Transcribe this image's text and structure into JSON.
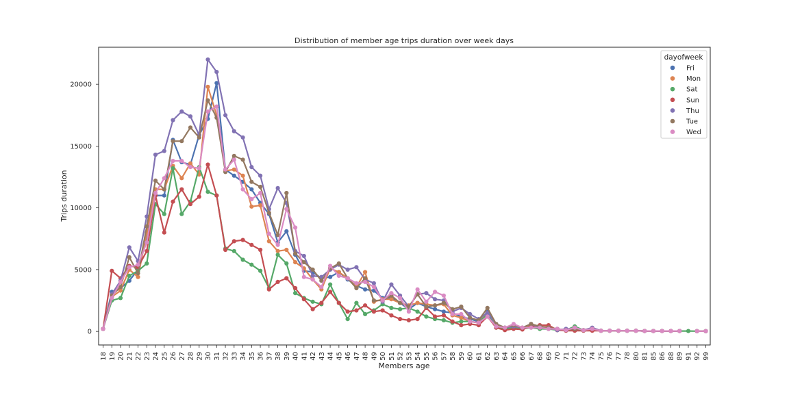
{
  "chart_data": {
    "type": "line",
    "title": "Distribution of member age trips duration over week days",
    "xlabel": "Members age",
    "ylabel": "Trips duration",
    "ylim": [
      -1100,
      23000
    ],
    "yticks": [
      0,
      5000,
      10000,
      15000,
      20000
    ],
    "grid": false,
    "legend": {
      "title": "dayofweek",
      "placement": "top-right"
    },
    "categories": [
      "18",
      "19",
      "20",
      "21",
      "22",
      "23",
      "24",
      "25",
      "26",
      "27",
      "28",
      "29",
      "30",
      "31",
      "32",
      "33",
      "34",
      "35",
      "36",
      "37",
      "38",
      "39",
      "40",
      "41",
      "42",
      "43",
      "44",
      "45",
      "46",
      "47",
      "48",
      "49",
      "50",
      "51",
      "52",
      "53",
      "54",
      "55",
      "56",
      "57",
      "58",
      "59",
      "60",
      "61",
      "62",
      "63",
      "64",
      "65",
      "66",
      "67",
      "68",
      "69",
      "70",
      "71",
      "72",
      "73",
      "74",
      "75",
      "76",
      "77",
      "78",
      "80",
      "81",
      "85",
      "86",
      "88",
      "89",
      "91",
      "92",
      "99"
    ],
    "series": [
      {
        "name": "Fri",
        "color": "#4c72b0",
        "values": [
          200,
          3200,
          3500,
          4100,
          5000,
          7700,
          11000,
          11000,
          15500,
          13700,
          13500,
          15900,
          17200,
          20100,
          13100,
          12600,
          12100,
          11500,
          10400,
          9500,
          7200,
          8100,
          6200,
          4900,
          4800,
          4300,
          4400,
          4800,
          4200,
          3700,
          3400,
          3300,
          2700,
          2700,
          2300,
          1800,
          2300,
          2000,
          1800,
          1600,
          1500,
          1200,
          1000,
          800,
          1600,
          500,
          300,
          300,
          250,
          400,
          300,
          200,
          200,
          100,
          200,
          100,
          200,
          50,
          50,
          50,
          50,
          50,
          30,
          30,
          30,
          30,
          30,
          null,
          20,
          20
        ]
      },
      {
        "name": "Mon",
        "color": "#dd8452",
        "values": [
          200,
          2800,
          3300,
          5000,
          4400,
          8000,
          11500,
          11500,
          13400,
          12400,
          13600,
          12700,
          19800,
          17500,
          13000,
          13100,
          12600,
          10100,
          10200,
          7300,
          6500,
          6600,
          5600,
          5100,
          4200,
          3400,
          5100,
          4800,
          4300,
          3600,
          4800,
          2400,
          2600,
          2600,
          2300,
          2100,
          2300,
          2200,
          2100,
          2200,
          1300,
          1100,
          800,
          700,
          1500,
          500,
          200,
          400,
          300,
          500,
          300,
          400,
          100,
          100,
          100,
          100,
          100,
          50,
          50,
          50,
          50,
          50,
          30,
          30,
          30,
          30,
          30,
          null,
          20,
          20
        ]
      },
      {
        "name": "Sat",
        "color": "#55a868",
        "values": [
          200,
          2500,
          2700,
          4500,
          4900,
          5500,
          10300,
          9500,
          13200,
          9500,
          10500,
          13300,
          11300,
          11000,
          6700,
          6500,
          5800,
          5400,
          4900,
          3500,
          6200,
          5500,
          3100,
          2700,
          2400,
          2200,
          3800,
          2300,
          1000,
          2300,
          1400,
          1700,
          2200,
          1900,
          1800,
          1900,
          1600,
          1200,
          1000,
          900,
          700,
          800,
          800,
          700,
          1400,
          300,
          200,
          300,
          200,
          300,
          200,
          200,
          100,
          100,
          400,
          100,
          100,
          50,
          50,
          50,
          50,
          50,
          30,
          30,
          30,
          30,
          30,
          30,
          20,
          20
        ]
      },
      {
        "name": "Sun",
        "color": "#c44e52",
        "values": [
          200,
          4900,
          4300,
          5300,
          5200,
          6500,
          11000,
          8000,
          10500,
          11500,
          10300,
          10900,
          13500,
          11000,
          6600,
          7300,
          7400,
          7000,
          6600,
          3400,
          4000,
          4300,
          3500,
          2600,
          1800,
          2300,
          3200,
          2300,
          1600,
          1700,
          2100,
          1600,
          1700,
          1300,
          1000,
          900,
          1000,
          1900,
          1200,
          1300,
          800,
          500,
          600,
          500,
          1200,
          300,
          100,
          200,
          150,
          400,
          500,
          500,
          100,
          50,
          50,
          50,
          50,
          50,
          50,
          50,
          50,
          50,
          30,
          30,
          30,
          30,
          30,
          null,
          20,
          20
        ]
      },
      {
        "name": "Thu",
        "color": "#8172b3",
        "values": [
          200,
          3000,
          4100,
          6800,
          5700,
          9300,
          14300,
          14600,
          17100,
          17800,
          17400,
          15900,
          22000,
          21000,
          17500,
          16200,
          15700,
          13300,
          12600,
          9900,
          11600,
          10400,
          6500,
          6100,
          4500,
          4400,
          5000,
          5400,
          5000,
          5200,
          4200,
          3900,
          2400,
          3800,
          2900,
          2000,
          3000,
          3100,
          2600,
          2500,
          1600,
          1900,
          1400,
          1000,
          1500,
          600,
          300,
          400,
          300,
          600,
          300,
          300,
          100,
          200,
          200,
          100,
          300,
          50,
          50,
          50,
          50,
          50,
          30,
          30,
          30,
          30,
          30,
          null,
          20,
          20
        ]
      },
      {
        "name": "Tue",
        "color": "#937860",
        "values": [
          200,
          2900,
          3600,
          6000,
          4700,
          8500,
          12200,
          11500,
          15400,
          15400,
          16500,
          15700,
          18700,
          17300,
          12900,
          14200,
          13900,
          12100,
          11700,
          9600,
          7800,
          11200,
          6300,
          5600,
          5000,
          4100,
          5100,
          5500,
          4300,
          3500,
          4300,
          2500,
          2500,
          2900,
          2300,
          2000,
          3000,
          2000,
          2100,
          2300,
          1800,
          2000,
          1100,
          900,
          1900,
          600,
          300,
          500,
          300,
          600,
          400,
          300,
          200,
          100,
          200,
          100,
          200,
          50,
          50,
          50,
          50,
          50,
          30,
          30,
          30,
          30,
          30,
          null,
          20,
          20
        ]
      },
      {
        "name": "Wed",
        "color": "#da8bc3",
        "values": [
          200,
          2700,
          4000,
          5200,
          5400,
          7200,
          11200,
          12400,
          13800,
          13800,
          13300,
          13200,
          17800,
          18200,
          13100,
          13900,
          11500,
          10700,
          11200,
          7900,
          7000,
          9900,
          8400,
          4400,
          4200,
          3600,
          5300,
          4500,
          4300,
          3900,
          4000,
          3600,
          2500,
          3100,
          2700,
          1600,
          3400,
          2400,
          3200,
          2900,
          1400,
          1400,
          800,
          700,
          1200,
          400,
          300,
          600,
          300,
          300,
          300,
          200,
          200,
          100,
          300,
          100,
          200,
          50,
          50,
          50,
          50,
          50,
          30,
          30,
          30,
          30,
          30,
          null,
          20,
          20
        ]
      }
    ]
  }
}
